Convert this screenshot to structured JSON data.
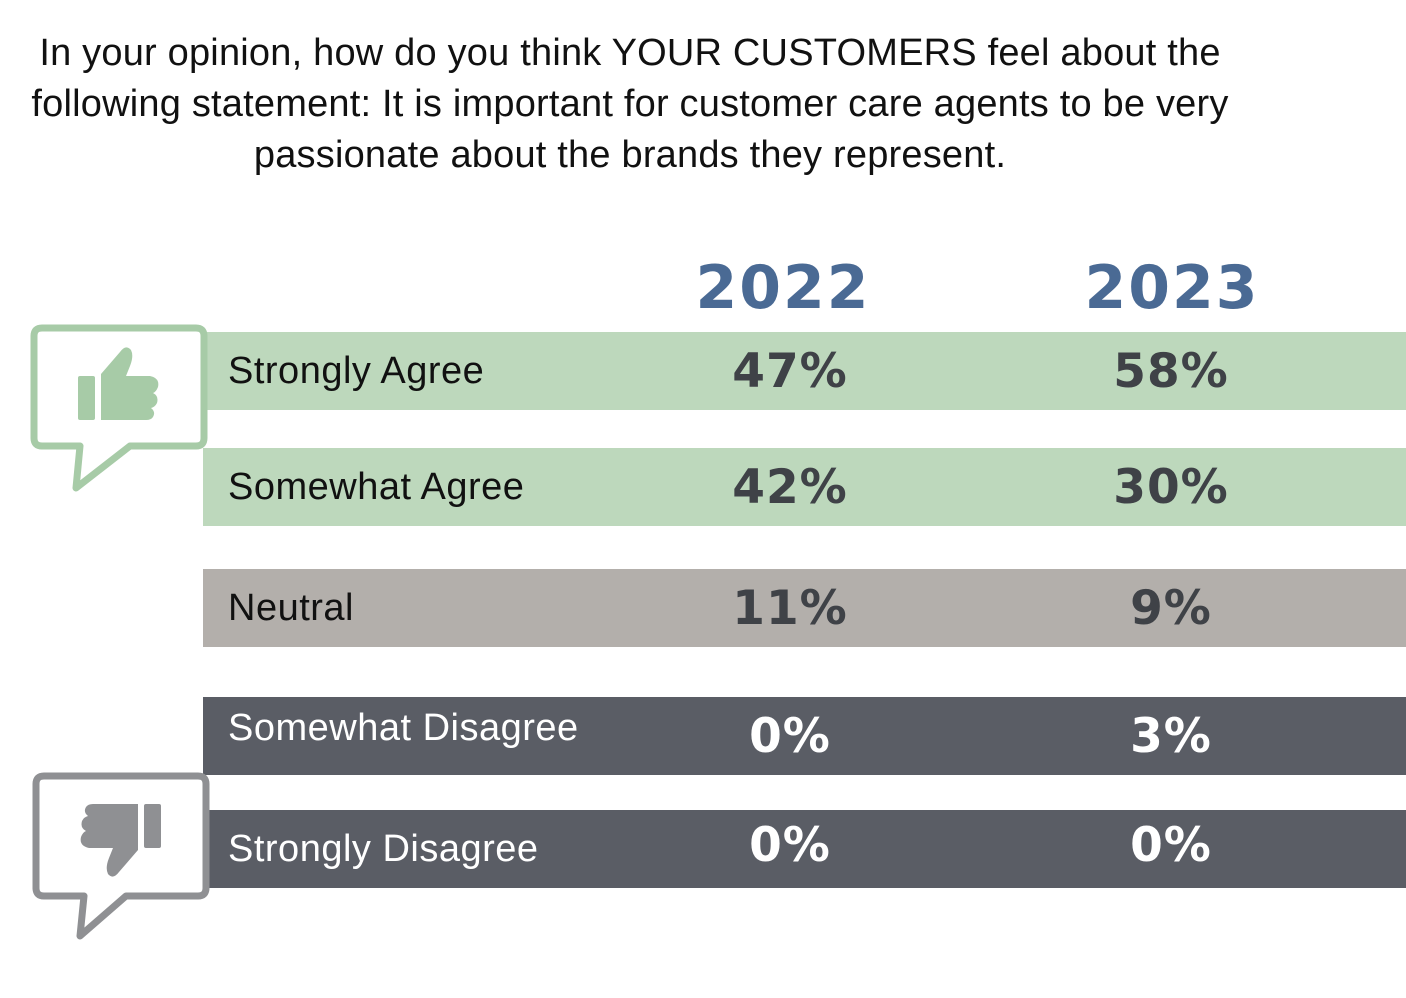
{
  "title": "In your opinion, how do you think YOUR CUSTOMERS feel about the following statement: It is important for customer care agents to be very passionate about the brands they represent.",
  "colors": {
    "year_header": "#4a6a94",
    "agree_bg": "#bdd8bc",
    "neutral_bg": "#b3afab",
    "disagree_bg": "#5a5d65",
    "dark_text": "#3f4247",
    "light_text": "#ffffff",
    "thumbs_up": "#a7cba7",
    "thumbs_down": "#8f9093"
  },
  "icons": {
    "agree": "thumbs-up-icon",
    "disagree": "thumbs-down-icon"
  },
  "chart_data": {
    "type": "table",
    "title": "In your opinion, how do you think YOUR CUSTOMERS feel about the following statement: It is important for customer care agents to be very passionate about the brands they represent.",
    "columns": [
      "2022",
      "2023"
    ],
    "categories": [
      "Strongly Agree",
      "Somewhat Agree",
      "Neutral",
      "Somewhat Disagree",
      "Strongly Disagree"
    ],
    "series": [
      {
        "name": "2022",
        "values": [
          47,
          42,
          11,
          0,
          0
        ]
      },
      {
        "name": "2023",
        "values": [
          58,
          30,
          9,
          3,
          0
        ]
      }
    ],
    "value_labels": {
      "2022": [
        "47%",
        "42%",
        "11%",
        "0%",
        "0%"
      ],
      "2023": [
        "58%",
        "30%",
        "9%",
        "3%",
        "0%"
      ]
    },
    "unit": "%"
  }
}
